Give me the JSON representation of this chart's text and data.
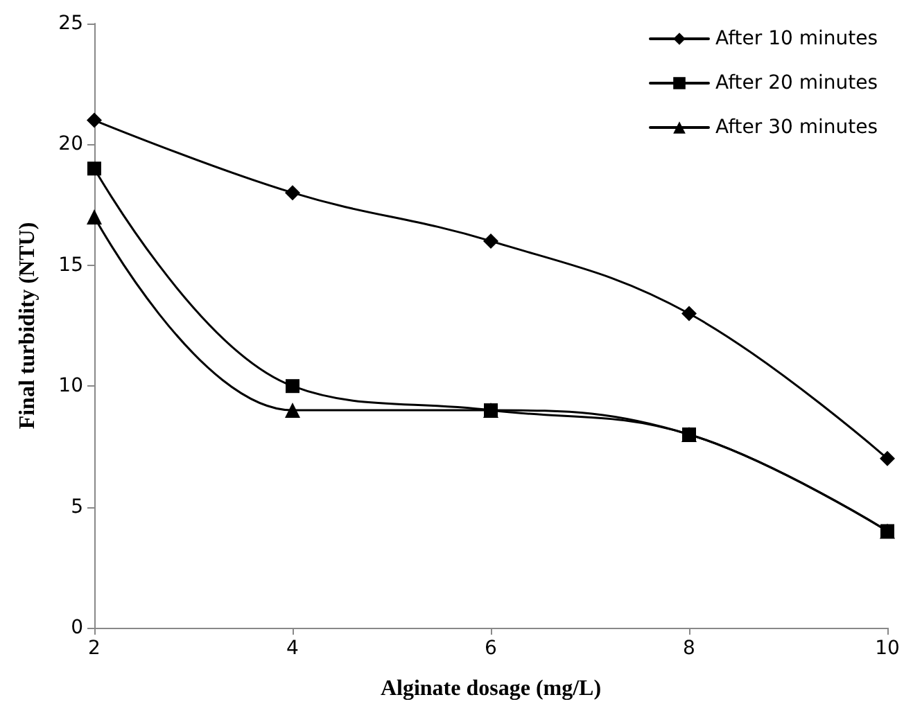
{
  "chart_data": {
    "type": "line",
    "xlabel": "Alginate dosage (mg/L)",
    "ylabel": "Final turbidity (NTU)",
    "x": [
      2,
      4,
      6,
      8,
      10
    ],
    "series": [
      {
        "name": "After 10 minutes",
        "color": "#000000",
        "marker": "diamond",
        "values": [
          21,
          18,
          16,
          13,
          7
        ]
      },
      {
        "name": "After 20 minutes",
        "color": "#000000",
        "marker": "square",
        "values": [
          19,
          10,
          9,
          8,
          4
        ]
      },
      {
        "name": "After 30 minutes",
        "color": "#000000",
        "marker": "triangle",
        "values": [
          17,
          9,
          9,
          8,
          4
        ]
      }
    ],
    "xlim": [
      2,
      10
    ],
    "xticks": [
      2,
      4,
      6,
      8,
      10
    ],
    "ylim": [
      0,
      25
    ],
    "yticks": [
      0,
      5,
      10,
      15,
      20,
      25
    ],
    "grid": false,
    "legend": "top right",
    "line_style": "solid"
  }
}
